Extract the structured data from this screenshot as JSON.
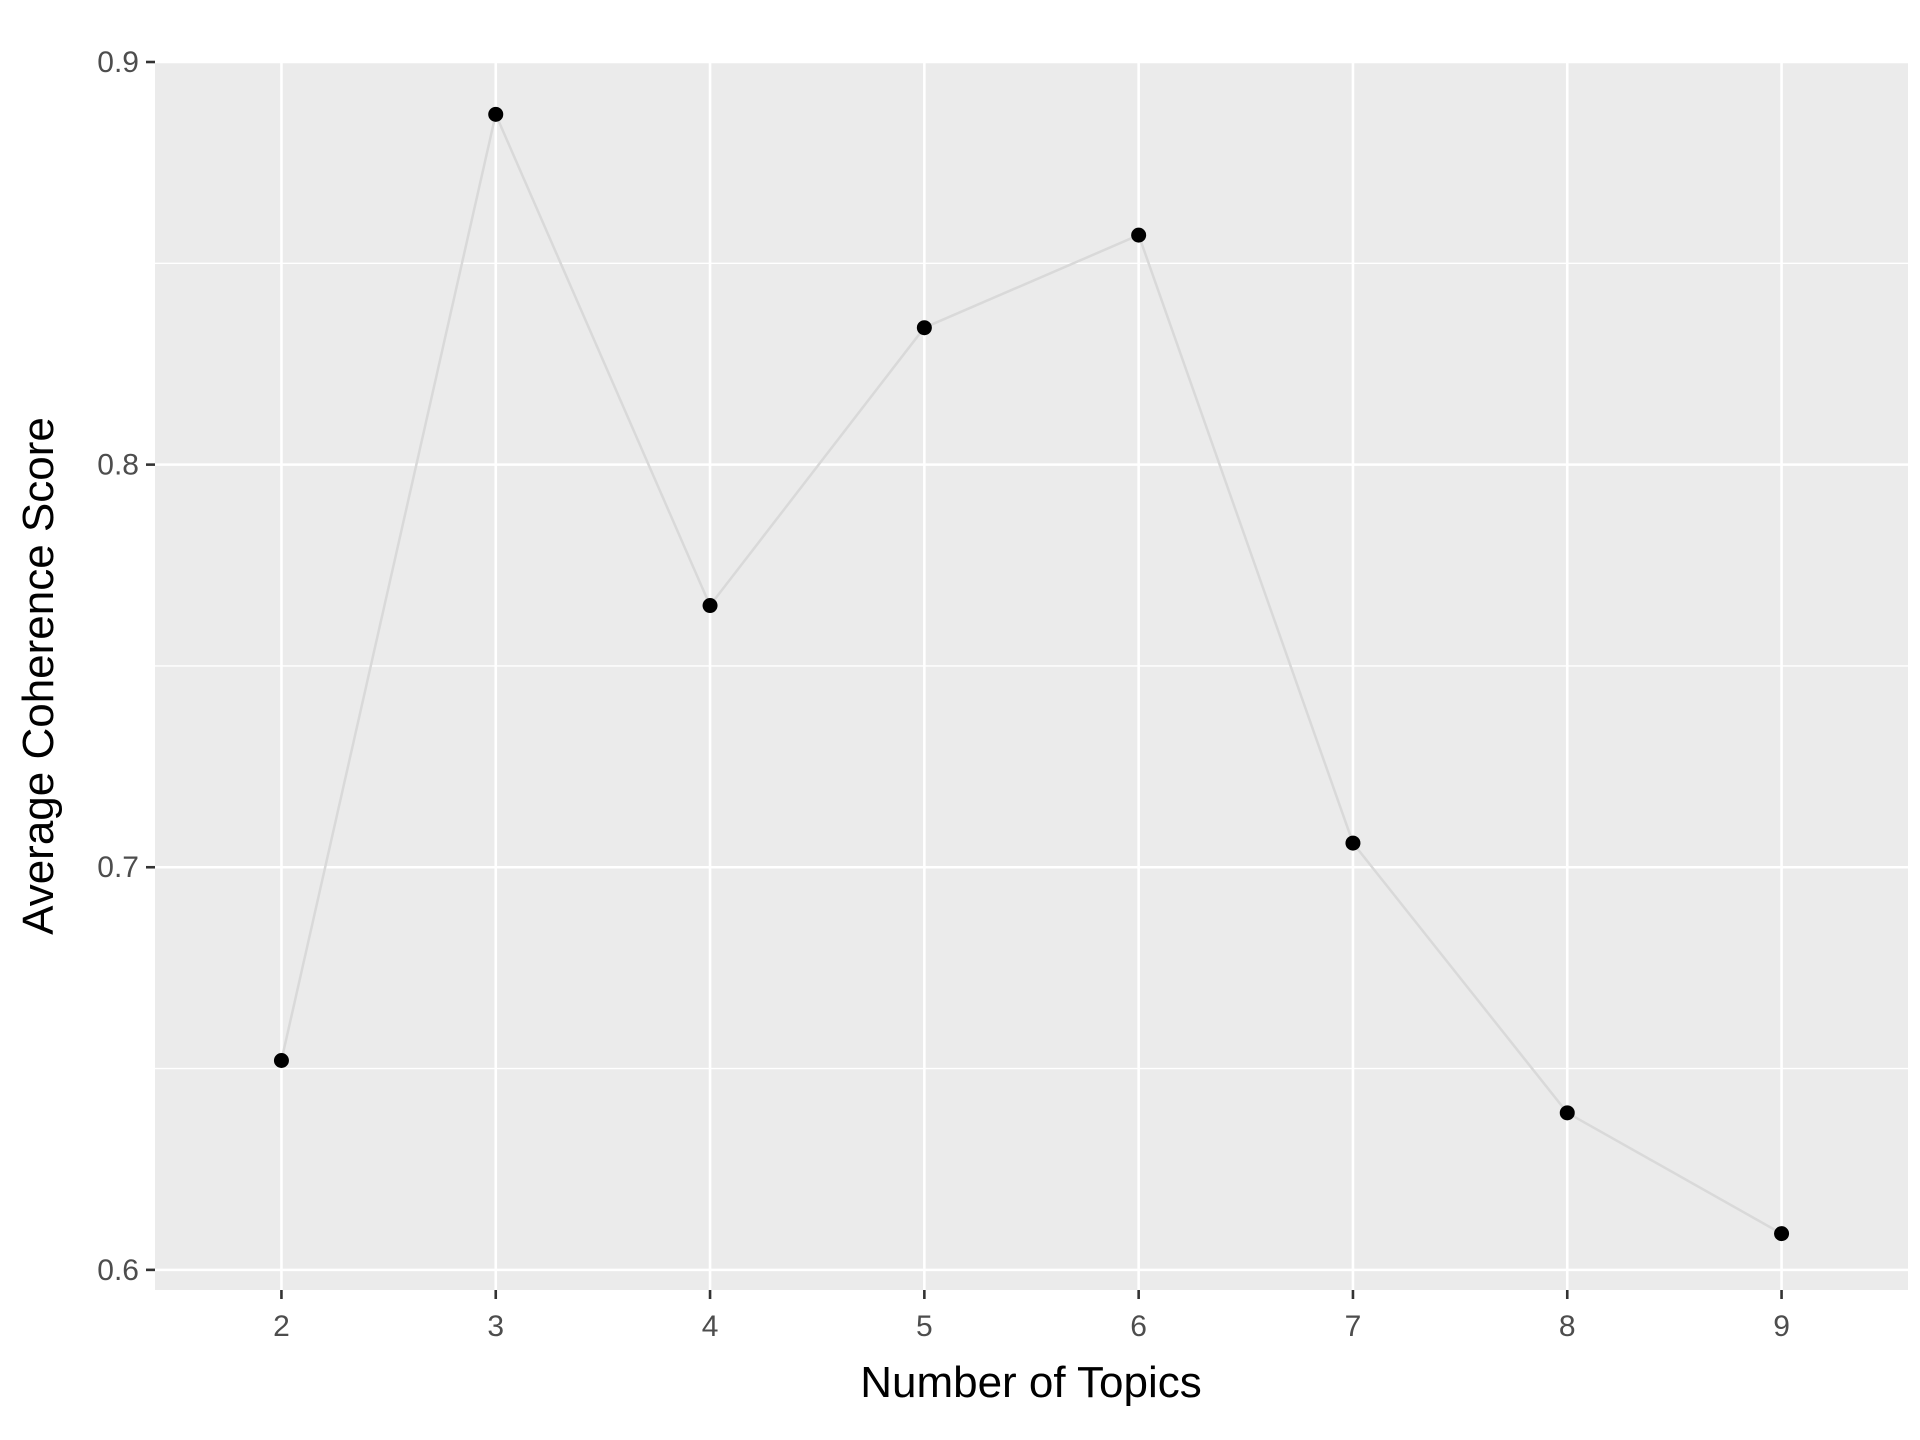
{
  "chart_data": {
    "type": "line",
    "title": "",
    "xlabel": "Number of Topics",
    "ylabel": "Average Coherence Score",
    "x": [
      2,
      3,
      4,
      5,
      6,
      7,
      8,
      9
    ],
    "series": [
      {
        "values": [
          0.652,
          0.887,
          0.765,
          0.834,
          0.857,
          0.706,
          0.639,
          0.609
        ],
        "line_color": "#d9d9d9",
        "point_color": "#000000"
      }
    ],
    "xticks": [
      "2",
      "3",
      "4",
      "5",
      "6",
      "7",
      "8",
      "9"
    ],
    "yticks": [
      "0.6",
      "0.7",
      "0.8",
      "0.9"
    ],
    "ytick_values": [
      0.6,
      0.7,
      0.8,
      0.9
    ],
    "xlim": [
      1.41,
      9.59
    ],
    "ylim": [
      0.595,
      0.9
    ],
    "grid": true,
    "panel_background": "#ebebeb",
    "gridline_color": "#ffffff"
  }
}
